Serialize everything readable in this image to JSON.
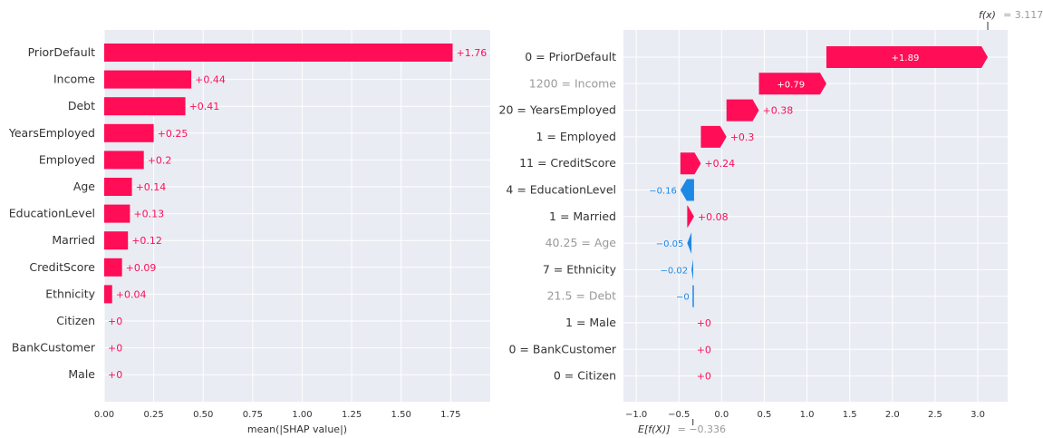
{
  "colors": {
    "positive": "#ff0d57",
    "negative": "#1e88e5",
    "plot_bg": "#e9ecf3"
  },
  "chart_data": [
    {
      "type": "bar",
      "orientation": "horizontal",
      "categories": [
        "PriorDefault",
        "Income",
        "Debt",
        "YearsEmployed",
        "Employed",
        "Age",
        "EducationLevel",
        "Married",
        "CreditScore",
        "Ethnicity",
        "Citizen",
        "BankCustomer",
        "Male"
      ],
      "values": [
        1.76,
        0.44,
        0.41,
        0.25,
        0.2,
        0.14,
        0.13,
        0.12,
        0.09,
        0.04,
        0,
        0,
        0
      ],
      "value_labels": [
        "+1.76",
        "+0.44",
        "+0.41",
        "+0.25",
        "+0.2",
        "+0.14",
        "+0.13",
        "+0.12",
        "+0.09",
        "+0.04",
        "+0",
        "+0",
        "+0"
      ],
      "xlabel": "mean(|SHAP value|)",
      "xticks": [
        "0.00",
        "0.25",
        "0.50",
        "0.75",
        "1.00",
        "1.25",
        "1.50",
        "1.75"
      ],
      "xlim": [
        0,
        1.95
      ]
    },
    {
      "type": "waterfall",
      "orientation": "horizontal",
      "categories": [
        "0 = PriorDefault",
        "1200 = Income",
        "20 = YearsEmployed",
        "1 = Employed",
        "11 = CreditScore",
        "4 = EducationLevel",
        "1 = Married",
        "40.25 = Age",
        "7 = Ethnicity",
        "21.5 = Debt",
        "1 = Male",
        "0 = BankCustomer",
        "0 = Citizen"
      ],
      "values": [
        1.89,
        0.79,
        0.38,
        0.3,
        0.24,
        -0.16,
        0.08,
        -0.05,
        -0.02,
        0,
        0,
        0,
        0
      ],
      "value_labels": [
        "+1.89",
        "+0.79",
        "+0.38",
        "+0.3",
        "+0.24",
        "−0.16",
        "+0.08",
        "−0.05",
        "−0.02",
        "−0",
        "+0",
        "+0",
        "+0"
      ],
      "xticks": [
        "−1.0",
        "−0.5",
        "0.0",
        "0.5",
        "1.0",
        "1.5",
        "2.0",
        "2.5",
        "3.0"
      ],
      "xlim": [
        -1.15,
        3.35
      ],
      "base_value": -0.336,
      "base_label": "E[f(X)]",
      "base_value_text": "= −0.336",
      "output_value": 3.117,
      "output_label": "f(x)",
      "output_value_text": "= 3.117"
    }
  ]
}
